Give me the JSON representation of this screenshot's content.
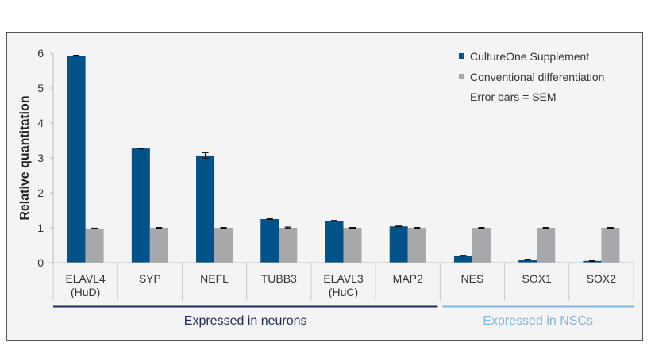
{
  "chart_data": {
    "type": "bar",
    "ylabel": "Relative quantitation",
    "ylim": [
      0,
      6
    ],
    "yticks": [
      "0",
      "1",
      "2",
      "3",
      "4",
      "5",
      "6"
    ],
    "categories": [
      [
        "ELAVL4",
        "(HuD)"
      ],
      [
        "SYP"
      ],
      [
        "NEFL"
      ],
      [
        "TUBB3"
      ],
      [
        "ELAVL3",
        "(HuC)"
      ],
      [
        "MAP2"
      ],
      [
        "NES"
      ],
      [
        "SOX1"
      ],
      [
        "SOX2"
      ]
    ],
    "series": [
      {
        "name": "CultureOne Supplement",
        "color": "#005289",
        "values": [
          5.93,
          3.27,
          3.07,
          1.25,
          1.2,
          1.04,
          0.2,
          0.09,
          0.05
        ],
        "errors": [
          0.01,
          0.01,
          0.08,
          0.01,
          0.01,
          0.01,
          0.01,
          0.01,
          0.01
        ]
      },
      {
        "name": "Conventional differentiation",
        "color": "#a7a8ab",
        "values": [
          0.98,
          1.0,
          1.0,
          1.0,
          1.0,
          1.0,
          1.0,
          1.0,
          1.0
        ],
        "errors": [
          0.01,
          0.01,
          0.01,
          0.02,
          0.01,
          0.01,
          0.01,
          0.01,
          0.01
        ]
      }
    ],
    "legend_note": "Error bars = SEM",
    "legend_position": "top-right",
    "grid": false,
    "groups": [
      {
        "label": "Expressed in neurons",
        "color": "#1f2a5c",
        "range": [
          0,
          5
        ]
      },
      {
        "label": "Expressed in NSCs",
        "color": "#7fb5e3",
        "range": [
          6,
          8
        ]
      }
    ]
  }
}
